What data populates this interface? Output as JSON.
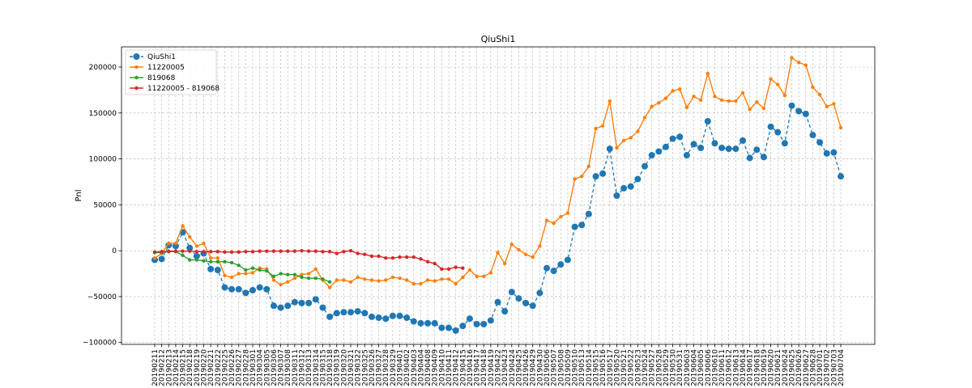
{
  "chart_data": {
    "type": "line",
    "title": "QiuShi1",
    "xlabel": "",
    "ylabel": "Pnl",
    "ylim": [
      -102000,
      222000
    ],
    "yticks": [
      -100000,
      -50000,
      0,
      50000,
      100000,
      150000,
      200000
    ],
    "ytick_labels": [
      "−100000",
      "−50000",
      "0",
      "50000",
      "100000",
      "150000",
      "200000"
    ],
    "grid": true,
    "legend_position": "top-left",
    "x": [
      "20190211",
      "20190212",
      "20190213",
      "20190214",
      "20190215",
      "20190218",
      "20190219",
      "20190220",
      "20190221",
      "20190222",
      "20190225",
      "20190226",
      "20190227",
      "20190228",
      "20190301",
      "20190304",
      "20190305",
      "20190306",
      "20190307",
      "20190308",
      "20190311",
      "20190312",
      "20190313",
      "20190314",
      "20190315",
      "20190318",
      "20190319",
      "20190320",
      "20190321",
      "20190322",
      "20190325",
      "20190326",
      "20190327",
      "20190328",
      "20190329",
      "20190401",
      "20190402",
      "20190403",
      "20190404",
      "20190408",
      "20190409",
      "20190410",
      "20190411",
      "20190412",
      "20190415",
      "20190416",
      "20190417",
      "20190418",
      "20190419",
      "20190422",
      "20190423",
      "20190424",
      "20190425",
      "20190426",
      "20190429",
      "20190430",
      "20190506",
      "20190507",
      "20190508",
      "20190509",
      "20190510",
      "20190513",
      "20190514",
      "20190515",
      "20190516",
      "20190517",
      "20190520",
      "20190521",
      "20190522",
      "20190523",
      "20190524",
      "20190527",
      "20190528",
      "20190529",
      "20190530",
      "20190531",
      "20190603",
      "20190604",
      "20190605",
      "20190606",
      "20190610",
      "20190611",
      "20190612",
      "20190613",
      "20190614",
      "20190617",
      "20190618",
      "20190619",
      "20190620",
      "20190621",
      "20190624",
      "20190625",
      "20190626",
      "20190627",
      "20190628",
      "20190701",
      "20190702",
      "20190703",
      "20190704"
    ],
    "series": [
      {
        "name": "QiuShi1",
        "color": "#1f77b4",
        "style": "dashed-large-dots",
        "values": [
          -10000,
          -9000,
          6000,
          5000,
          20000,
          3000,
          -6000,
          -3000,
          -20000,
          -21000,
          -40000,
          -42000,
          -42000,
          -46000,
          -43000,
          -40000,
          -42000,
          -60000,
          -62000,
          -60000,
          -56000,
          -57000,
          -57000,
          -53000,
          -62000,
          -72000,
          -68000,
          -67000,
          -67000,
          -66000,
          -68000,
          -72000,
          -73000,
          -74000,
          -71000,
          -71000,
          -73000,
          -77000,
          -79000,
          -79000,
          -79000,
          -84000,
          -84000,
          -87000,
          -82000,
          -74000,
          -80000,
          -80000,
          -76000,
          -56000,
          -66000,
          -45000,
          -52000,
          -57000,
          -60000,
          -46000,
          -19000,
          -22000,
          -15000,
          -10000,
          26000,
          28000,
          40000,
          81000,
          84000,
          111000,
          60000,
          68000,
          70000,
          78000,
          92000,
          104000,
          108000,
          113000,
          122000,
          124000,
          104000,
          116000,
          112000,
          141000,
          117000,
          112000,
          111000,
          111000,
          120000,
          101000,
          110000,
          102000,
          135000,
          129000,
          117000,
          158000,
          152000,
          149000,
          126000,
          118000,
          106000,
          107000,
          81000
        ]
      },
      {
        "name": "11220005",
        "color": "#ff7f0e",
        "style": "solid-small-dots",
        "values": [
          -8000,
          -3000,
          8000,
          8000,
          27000,
          15000,
          5000,
          8000,
          -8000,
          -8000,
          -27000,
          -29000,
          -25000,
          -25000,
          -24000,
          -19000,
          -20000,
          -32000,
          -37000,
          -34000,
          -30000,
          -26000,
          -25000,
          -20000,
          -32000,
          -40000,
          -32000,
          -32000,
          -34000,
          -29000,
          -31000,
          -32000,
          -33000,
          -32000,
          -29000,
          -30000,
          -32000,
          -36000,
          -36000,
          -32000,
          -33000,
          -31000,
          -31000,
          -36000,
          -29000,
          -21000,
          -28000,
          -28000,
          -24000,
          -2000,
          -14000,
          7000,
          1000,
          -4000,
          -7000,
          5000,
          33000,
          30000,
          37000,
          41000,
          78000,
          81000,
          92000,
          133000,
          136000,
          163000,
          112000,
          120000,
          123000,
          130000,
          145000,
          157000,
          161000,
          166000,
          174000,
          176000,
          156000,
          168000,
          164000,
          193000,
          168000,
          164000,
          163000,
          163000,
          172000,
          154000,
          162000,
          155000,
          187000,
          181000,
          169000,
          210000,
          205000,
          202000,
          178000,
          170000,
          157000,
          160000,
          134000
        ]
      },
      {
        "name": "819068",
        "color": "#2ca02c",
        "style": "solid-small-dots",
        "values": [
          -2000,
          -2000,
          -1000,
          -1000,
          -5000,
          -10000,
          -10000,
          -11000,
          -12000,
          -12000,
          -12000,
          -13000,
          -16000,
          -21000,
          -19000,
          -21000,
          -22000,
          -28000,
          -25000,
          -26000,
          -26000,
          -29000,
          -30000,
          -30000,
          -31000,
          -34000,
          null,
          null,
          null,
          null,
          null,
          null,
          null,
          null,
          null,
          null,
          null,
          null,
          null,
          null,
          null,
          null,
          null,
          null,
          null,
          null,
          null,
          null,
          null,
          null,
          null,
          null,
          null,
          null,
          null,
          null,
          null,
          null,
          null,
          null,
          null,
          null,
          null,
          null,
          null,
          null,
          null,
          null,
          null,
          null,
          null,
          null,
          null,
          null,
          null,
          null,
          null,
          null,
          null,
          null,
          null,
          null,
          null,
          null,
          null,
          null,
          null,
          null,
          null,
          null,
          null,
          null,
          null,
          null,
          null,
          null,
          null,
          null,
          null
        ]
      },
      {
        "name": "11220005 - 819068",
        "color": "#d62728",
        "style": "solid-small-dots",
        "values": [
          -1500,
          -1000,
          -500,
          -500,
          -500,
          -500,
          -1000,
          -1000,
          -1000,
          -1000,
          -1500,
          -1500,
          -1500,
          -1000,
          -1000,
          -500,
          -500,
          -500,
          -500,
          -500,
          -500,
          0,
          -500,
          -500,
          -1000,
          -1000,
          -3000,
          -1000,
          0,
          -3000,
          -4000,
          -6000,
          -6000,
          -8000,
          -8000,
          -7000,
          -7000,
          -7000,
          -9000,
          -12000,
          -14000,
          -20000,
          -20000,
          -18000,
          -19000,
          null,
          null,
          null,
          null,
          null,
          null,
          null,
          null,
          null,
          null,
          null,
          null,
          null,
          null,
          null,
          null,
          null,
          null,
          null,
          null,
          null,
          null,
          null,
          null,
          null,
          null,
          null,
          null,
          null,
          null,
          null,
          null,
          null,
          null,
          null,
          null,
          null,
          null,
          null,
          null,
          null,
          null,
          null,
          null,
          null,
          null,
          null,
          null,
          null,
          null,
          null,
          null,
          null,
          null
        ]
      }
    ]
  }
}
